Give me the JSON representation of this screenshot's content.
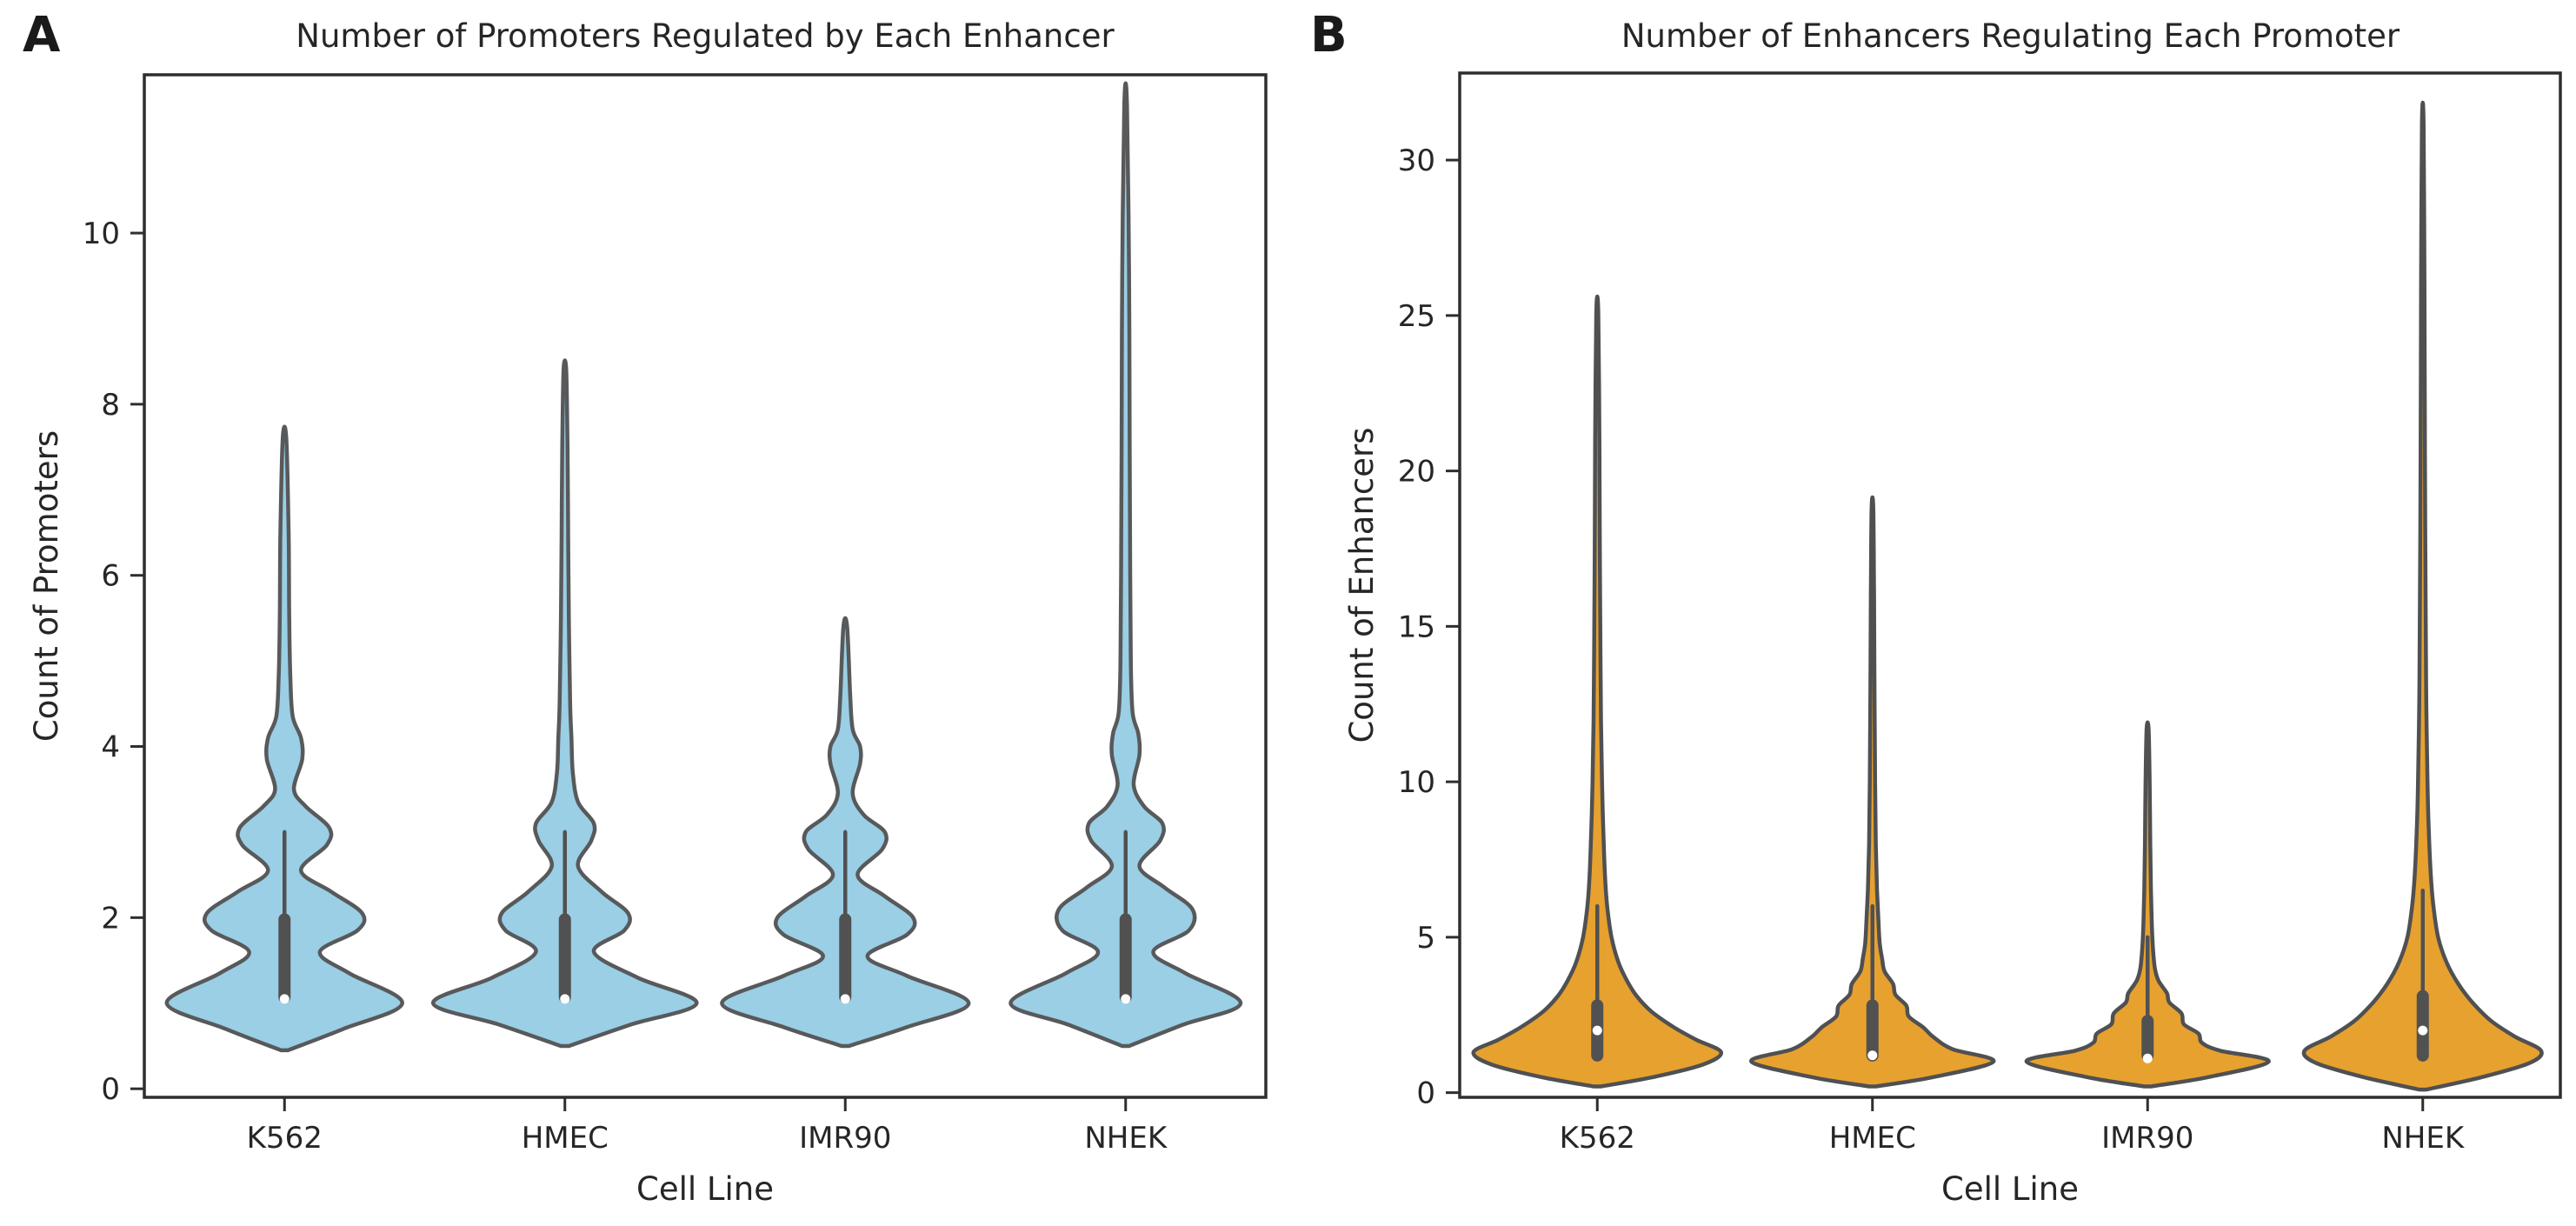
{
  "figure": {
    "background": "#ffffff",
    "frame_color": "#2e2e2e",
    "text_color": "#262626",
    "inner_box_color": "#515151",
    "median_dot_color": "#ffffff"
  },
  "panels": [
    {
      "label": "A",
      "title": "Number of Promoters Regulated by Each Enhancer"
    },
    {
      "label": "B",
      "title": "Number of Enhancers Regulating Each Promoter"
    }
  ],
  "chart_data": [
    {
      "type": "violin",
      "title": "Number of Promoters Regulated by Each Enhancer",
      "xlabel": "Cell Line",
      "ylabel": "Count of Promoters",
      "categories": [
        "K562",
        "HMEC",
        "IMR90",
        "NHEK"
      ],
      "yticks": [
        0,
        2,
        4,
        6,
        8,
        10
      ],
      "ylim": [
        -0.1,
        11.85
      ],
      "grid": false,
      "legend": "none",
      "fill_color": "#9ACFE5",
      "edge_color": "#58595b",
      "series": [
        {
          "name": "K562",
          "min": 0.45,
          "max": 7.6,
          "peak_value": 1,
          "max_halfwidth": 0.42,
          "box": {
            "q1": 1.0,
            "q3": 2.05,
            "median": 1.05,
            "whisker_high": 3.0
          },
          "profile": [
            [
              0.45,
              0.03
            ],
            [
              0.7,
              0.5
            ],
            [
              1.0,
              1.0
            ],
            [
              1.35,
              0.55
            ],
            [
              1.6,
              0.3
            ],
            [
              1.85,
              0.62
            ],
            [
              2.05,
              0.66
            ],
            [
              2.3,
              0.4
            ],
            [
              2.55,
              0.14
            ],
            [
              2.85,
              0.36
            ],
            [
              3.05,
              0.38
            ],
            [
              3.3,
              0.18
            ],
            [
              3.5,
              0.08
            ],
            [
              3.85,
              0.15
            ],
            [
              4.1,
              0.14
            ],
            [
              4.35,
              0.07
            ],
            [
              4.8,
              0.05
            ],
            [
              5.5,
              0.04
            ],
            [
              6.5,
              0.035
            ],
            [
              7.6,
              0.015
            ]
          ]
        },
        {
          "name": "HMEC",
          "min": 0.5,
          "max": 8.4,
          "peak_value": 1,
          "max_halfwidth": 0.47,
          "box": {
            "q1": 1.0,
            "q3": 2.05,
            "median": 1.05,
            "whisker_high": 3.0
          },
          "profile": [
            [
              0.5,
              0.03
            ],
            [
              0.75,
              0.5
            ],
            [
              1.0,
              1.0
            ],
            [
              1.3,
              0.55
            ],
            [
              1.6,
              0.22
            ],
            [
              1.85,
              0.45
            ],
            [
              2.05,
              0.48
            ],
            [
              2.3,
              0.28
            ],
            [
              2.6,
              0.1
            ],
            [
              2.9,
              0.2
            ],
            [
              3.1,
              0.22
            ],
            [
              3.35,
              0.1
            ],
            [
              3.7,
              0.06
            ],
            [
              4.1,
              0.05
            ],
            [
              4.5,
              0.04
            ],
            [
              5.5,
              0.03
            ],
            [
              6.5,
              0.025
            ],
            [
              7.5,
              0.02
            ],
            [
              8.4,
              0.01
            ]
          ]
        },
        {
          "name": "IMR90",
          "min": 0.5,
          "max": 5.4,
          "peak_value": 1,
          "max_halfwidth": 0.44,
          "box": {
            "q1": 1.0,
            "q3": 2.05,
            "median": 1.05,
            "whisker_high": 3.0
          },
          "profile": [
            [
              0.5,
              0.03
            ],
            [
              0.72,
              0.5
            ],
            [
              1.0,
              1.0
            ],
            [
              1.32,
              0.5
            ],
            [
              1.55,
              0.18
            ],
            [
              1.8,
              0.5
            ],
            [
              2.0,
              0.55
            ],
            [
              2.25,
              0.32
            ],
            [
              2.5,
              0.1
            ],
            [
              2.8,
              0.3
            ],
            [
              3.0,
              0.32
            ],
            [
              3.2,
              0.15
            ],
            [
              3.45,
              0.06
            ],
            [
              3.8,
              0.12
            ],
            [
              4.0,
              0.12
            ],
            [
              4.2,
              0.06
            ],
            [
              4.6,
              0.04
            ],
            [
              5.4,
              0.015
            ]
          ]
        },
        {
          "name": "NHEK",
          "min": 0.5,
          "max": 11.5,
          "peak_value": 1,
          "max_halfwidth": 0.41,
          "box": {
            "q1": 1.0,
            "q3": 2.05,
            "median": 1.05,
            "whisker_high": 3.0
          },
          "profile": [
            [
              0.5,
              0.03
            ],
            [
              0.75,
              0.5
            ],
            [
              1.0,
              1.0
            ],
            [
              1.35,
              0.52
            ],
            [
              1.6,
              0.24
            ],
            [
              1.85,
              0.55
            ],
            [
              2.1,
              0.58
            ],
            [
              2.35,
              0.34
            ],
            [
              2.6,
              0.12
            ],
            [
              2.9,
              0.3
            ],
            [
              3.1,
              0.32
            ],
            [
              3.3,
              0.16
            ],
            [
              3.55,
              0.07
            ],
            [
              3.9,
              0.12
            ],
            [
              4.15,
              0.11
            ],
            [
              4.4,
              0.06
            ],
            [
              5.0,
              0.045
            ],
            [
              6.0,
              0.04
            ],
            [
              7.5,
              0.035
            ],
            [
              9.5,
              0.03
            ],
            [
              11.5,
              0.012
            ]
          ]
        }
      ]
    },
    {
      "type": "violin",
      "title": "Number of Enhancers Regulating Each Promoter",
      "xlabel": "Cell Line",
      "ylabel": "Count of Enhancers",
      "categories": [
        "K562",
        "HMEC",
        "IMR90",
        "NHEK"
      ],
      "yticks": [
        0,
        5,
        10,
        15,
        20,
        25,
        30
      ],
      "ylim": [
        -0.15,
        32.8
      ],
      "grid": false,
      "legend": "none",
      "fill_color": "#E7A12F",
      "edge_color": "#4f5052",
      "series": [
        {
          "name": "K562",
          "min": 0.2,
          "max": 25.1,
          "peak_value": 1.3,
          "max_halfwidth": 0.45,
          "box": {
            "q1": 1.0,
            "q3": 3.0,
            "median": 2.0,
            "whisker_high": 6.0
          },
          "profile": [
            [
              0.2,
              0.03
            ],
            [
              0.5,
              0.45
            ],
            [
              0.9,
              0.85
            ],
            [
              1.3,
              1.0
            ],
            [
              1.7,
              0.8
            ],
            [
              2.1,
              0.62
            ],
            [
              2.6,
              0.44
            ],
            [
              3.1,
              0.32
            ],
            [
              3.6,
              0.24
            ],
            [
              4.2,
              0.17
            ],
            [
              5,
              0.115
            ],
            [
              6,
              0.08
            ],
            [
              7,
              0.062
            ],
            [
              8.5,
              0.048
            ],
            [
              10,
              0.038
            ],
            [
              12,
              0.03
            ],
            [
              15,
              0.024
            ],
            [
              18,
              0.02
            ],
            [
              21,
              0.017
            ],
            [
              25.1,
              0.008
            ]
          ]
        },
        {
          "name": "HMEC",
          "min": 0.2,
          "max": 18.8,
          "peak_value": 1,
          "max_halfwidth": 0.44,
          "box": {
            "q1": 1.0,
            "q3": 3.0,
            "median": 1.2,
            "whisker_high": 6.0
          },
          "profile": [
            [
              0.2,
              0.03
            ],
            [
              0.5,
              0.5
            ],
            [
              1.0,
              1.0
            ],
            [
              1.4,
              0.66
            ],
            [
              1.8,
              0.5
            ],
            [
              2.1,
              0.42
            ],
            [
              2.45,
              0.3
            ],
            [
              2.8,
              0.28
            ],
            [
              3.15,
              0.19
            ],
            [
              3.5,
              0.17
            ],
            [
              3.9,
              0.1
            ],
            [
              4.3,
              0.08
            ],
            [
              4.8,
              0.06
            ],
            [
              5.5,
              0.05
            ],
            [
              6.5,
              0.038
            ],
            [
              8,
              0.028
            ],
            [
              10,
              0.022
            ],
            [
              13,
              0.017
            ],
            [
              16,
              0.013
            ],
            [
              18.8,
              0.007
            ]
          ]
        },
        {
          "name": "IMR90",
          "min": 0.2,
          "max": 11.7,
          "peak_value": 1,
          "max_halfwidth": 0.44,
          "box": {
            "q1": 1.0,
            "q3": 2.5,
            "median": 1.1,
            "whisker_high": 5.0
          },
          "profile": [
            [
              0.2,
              0.03
            ],
            [
              0.5,
              0.5
            ],
            [
              1.0,
              1.0
            ],
            [
              1.35,
              0.6
            ],
            [
              1.6,
              0.45
            ],
            [
              1.9,
              0.42
            ],
            [
              2.2,
              0.3
            ],
            [
              2.55,
              0.28
            ],
            [
              2.9,
              0.18
            ],
            [
              3.2,
              0.16
            ],
            [
              3.6,
              0.09
            ],
            [
              4.0,
              0.06
            ],
            [
              4.6,
              0.045
            ],
            [
              5.4,
              0.035
            ],
            [
              6.5,
              0.028
            ],
            [
              8,
              0.022
            ],
            [
              10,
              0.017
            ],
            [
              11.7,
              0.008
            ]
          ]
        },
        {
          "name": "NHEK",
          "min": 0.1,
          "max": 31.2,
          "peak_value": 1.35,
          "max_halfwidth": 0.43,
          "box": {
            "q1": 1.0,
            "q3": 3.3,
            "median": 2.0,
            "whisker_high": 6.5
          },
          "profile": [
            [
              0.1,
              0.03
            ],
            [
              0.5,
              0.5
            ],
            [
              0.95,
              0.9
            ],
            [
              1.35,
              1.0
            ],
            [
              1.8,
              0.78
            ],
            [
              2.3,
              0.58
            ],
            [
              2.9,
              0.42
            ],
            [
              3.5,
              0.3
            ],
            [
              4.2,
              0.2
            ],
            [
              5,
              0.13
            ],
            [
              6,
              0.09
            ],
            [
              7,
              0.068
            ],
            [
              8.5,
              0.05
            ],
            [
              10,
              0.04
            ],
            [
              12.5,
              0.03
            ],
            [
              15,
              0.025
            ],
            [
              18,
              0.021
            ],
            [
              22,
              0.017
            ],
            [
              26,
              0.014
            ],
            [
              31.2,
              0.007
            ]
          ]
        }
      ]
    }
  ]
}
